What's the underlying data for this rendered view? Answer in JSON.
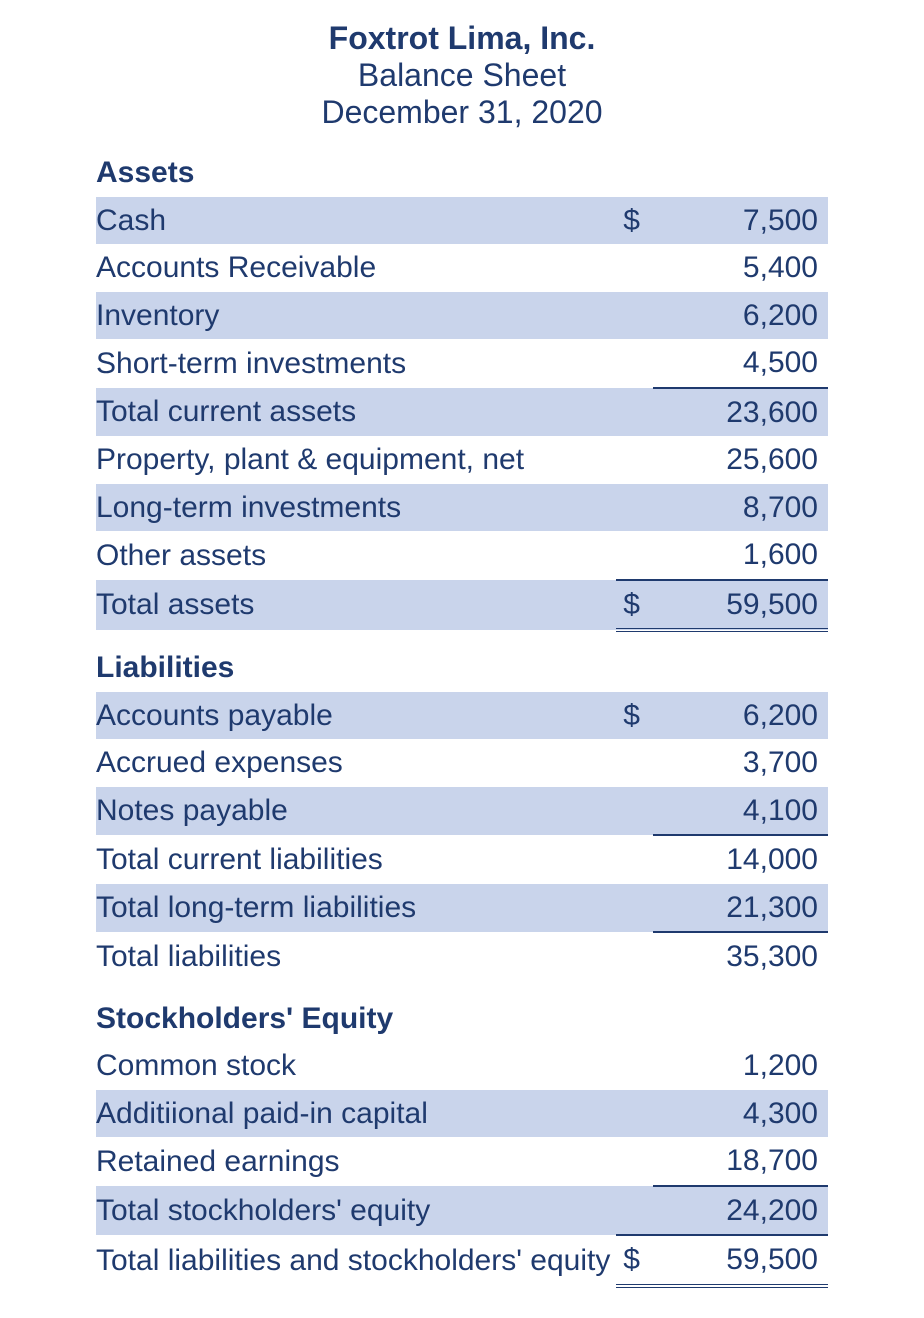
{
  "colors": {
    "text": "#1f3a6e",
    "row_band": "#c9d4eb",
    "background": "#ffffff",
    "rule": "#1f3a6e"
  },
  "typography": {
    "font_family": "Helvetica, Arial, sans-serif",
    "title_fontsize_pt": 24,
    "body_fontsize_pt": 22
  },
  "header": {
    "company": "Foxtrot Lima, Inc.",
    "subtitle": "Balance Sheet",
    "date": "December 31, 2020"
  },
  "sections": {
    "assets": {
      "title": "Assets",
      "rows": [
        {
          "label": "Cash",
          "dollar": "$",
          "value": "7,500"
        },
        {
          "label": "Accounts Receivable",
          "dollar": "",
          "value": "5,400"
        },
        {
          "label": "Inventory",
          "dollar": "",
          "value": "6,200"
        },
        {
          "label": "Short-term investments",
          "dollar": "",
          "value": "4,500"
        },
        {
          "label": "Total current assets",
          "dollar": "",
          "value": "23,600"
        },
        {
          "label": "Property, plant & equipment, net",
          "dollar": "",
          "value": "25,600"
        },
        {
          "label": "Long-term investments",
          "dollar": "",
          "value": "8,700"
        },
        {
          "label": "Other assets",
          "dollar": "",
          "value": "1,600"
        },
        {
          "label": "Total assets",
          "dollar": "$",
          "value": "59,500"
        }
      ]
    },
    "liabilities": {
      "title": "Liabilities",
      "rows": [
        {
          "label": "Accounts payable",
          "dollar": "$",
          "value": "6,200"
        },
        {
          "label": "Accrued expenses",
          "dollar": "",
          "value": "3,700"
        },
        {
          "label": "Notes payable",
          "dollar": "",
          "value": "4,100"
        },
        {
          "label": "Total current liabilities",
          "dollar": "",
          "value": "14,000"
        },
        {
          "label": "Total long-term liabilities",
          "dollar": "",
          "value": "21,300"
        },
        {
          "label": "Total liabilities",
          "dollar": "",
          "value": "35,300"
        }
      ]
    },
    "equity": {
      "title": "Stockholders' Equity",
      "rows": [
        {
          "label": "Common stock",
          "dollar": "",
          "value": "1,200"
        },
        {
          "label": "Additiional paid-in capital",
          "dollar": "",
          "value": "4,300"
        },
        {
          "label": "Retained earnings",
          "dollar": "",
          "value": "18,700"
        },
        {
          "label": "Total stockholders' equity",
          "dollar": "",
          "value": "24,200"
        },
        {
          "label": "Total liabilities and stockholders' equity",
          "dollar": "$",
          "value": "59,500"
        }
      ]
    }
  }
}
